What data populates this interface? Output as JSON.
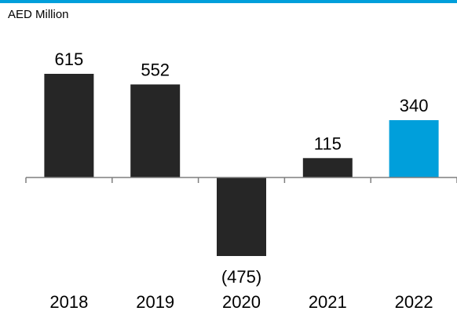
{
  "header": {
    "rule_color": "#009fdb"
  },
  "chart_data": {
    "type": "bar",
    "unit_label": "AED Million",
    "categories": [
      "2018",
      "2019",
      "2020",
      "2021",
      "2022"
    ],
    "values": [
      615,
      552,
      -475,
      115,
      340
    ],
    "value_labels": [
      "615",
      "552",
      "(475)",
      "115",
      "340"
    ],
    "bar_colors": [
      "#262626",
      "#262626",
      "#262626",
      "#262626",
      "#009fdb"
    ],
    "title": "",
    "xlabel": "",
    "ylabel": "",
    "ylim": [
      -475,
      615
    ],
    "grid": false,
    "legend": "none"
  }
}
